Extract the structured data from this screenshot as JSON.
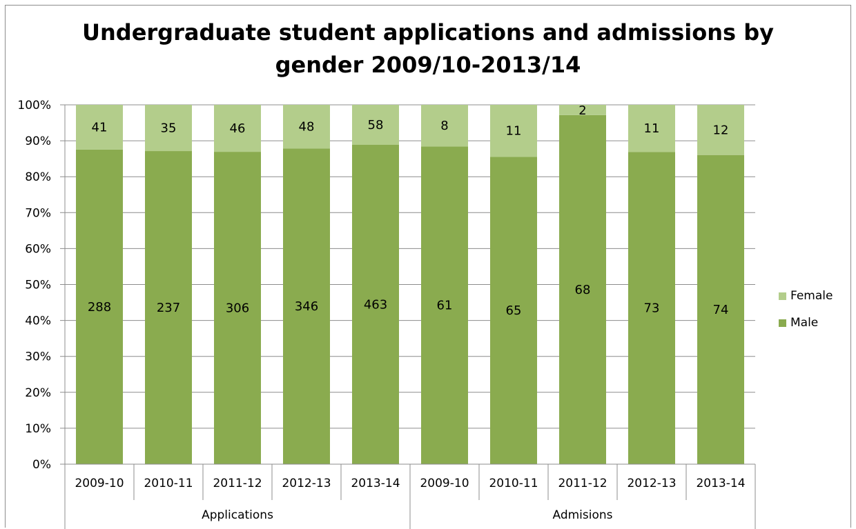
{
  "chart_data": {
    "type": "bar",
    "stacked": "percent",
    "title": "Undergraduate student applications and admissions by gender 2009/10-2013/14",
    "title_lines": [
      "Undergraduate student applications and admissions by",
      "gender 2009/10-2013/14"
    ],
    "groups": [
      {
        "name": "Applications",
        "categories": [
          "2009-10",
          "2010-11",
          "2011-12",
          "2012-13",
          "2013-14"
        ]
      },
      {
        "name": "Admisions",
        "categories": [
          "2009-10",
          "2010-11",
          "2011-12",
          "2012-13",
          "2013-14"
        ]
      }
    ],
    "categories": [
      "2009-10",
      "2010-11",
      "2011-12",
      "2012-13",
      "2013-14",
      "2009-10",
      "2010-11",
      "2011-12",
      "2012-13",
      "2013-14"
    ],
    "series": [
      {
        "name": "Male",
        "values": [
          288,
          237,
          306,
          346,
          463,
          61,
          65,
          68,
          73,
          74
        ],
        "color": "#8aab4f"
      },
      {
        "name": "Female",
        "values": [
          41,
          35,
          46,
          48,
          58,
          8,
          11,
          2,
          11,
          12
        ],
        "color": "#b3cd8b"
      }
    ],
    "y_ticks": [
      "0%",
      "10%",
      "20%",
      "30%",
      "40%",
      "50%",
      "60%",
      "70%",
      "80%",
      "90%",
      "100%"
    ],
    "ylim": [
      0,
      100
    ],
    "y_unit": "percent",
    "grid": true,
    "legend_position": "right",
    "legend": [
      "Female",
      "Male"
    ],
    "grid_color": "#8c8c8c",
    "background": "#ffffff"
  }
}
